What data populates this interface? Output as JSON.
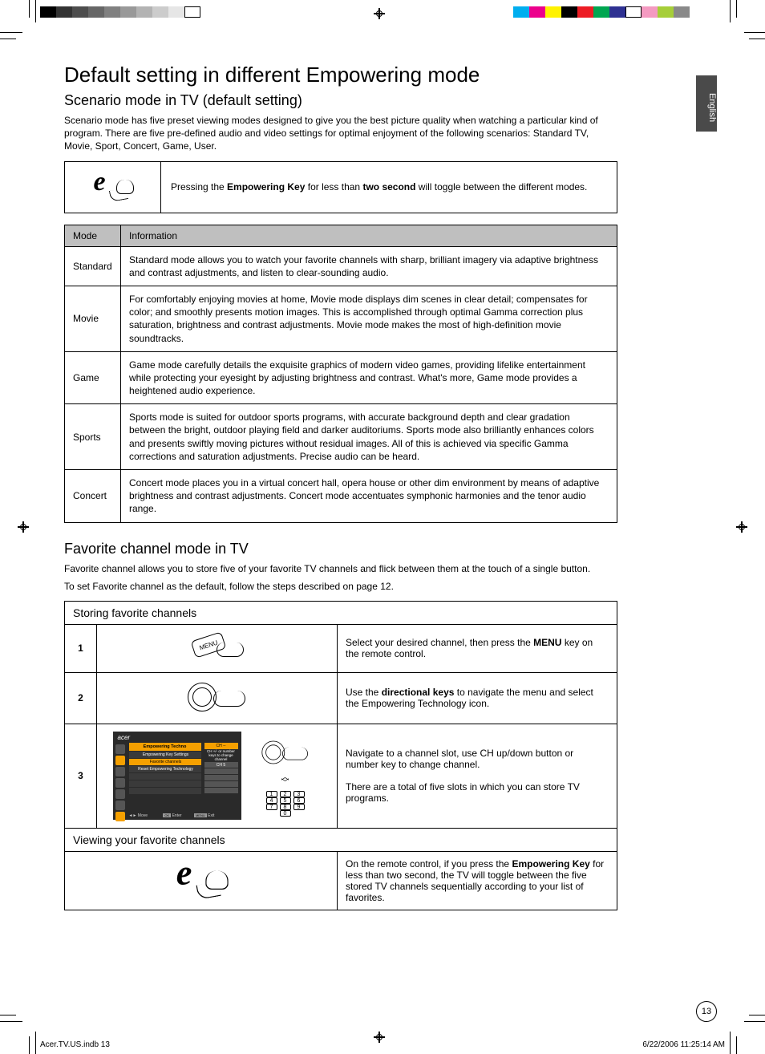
{
  "print_marks": {
    "left_swatches": [
      "#000000",
      "#333333",
      "#4d4d4d",
      "#666666",
      "#808080",
      "#999999",
      "#b3b3b3",
      "#cccccc",
      "#e6e6e6",
      "#ffffff"
    ],
    "right_swatches": [
      "#00aeef",
      "#ec008c",
      "#fff200",
      "#000000",
      "#ed1c24",
      "#00a651",
      "#2e3192",
      "#ffffff",
      "#f49ac1",
      "#a6ce39",
      "#898989"
    ]
  },
  "language_tab": "English",
  "title": "Default setting in different Empowering mode",
  "subtitle": "Scenario mode in TV  (default setting)",
  "intro": "Scenario mode has five preset viewing modes designed to give you the best picture quality when watching a particular kind of program. There are five pre-defined audio and video settings for optimal enjoyment of the following scenarios: Standard TV, Movie, Sport, Concert, Game, User.",
  "note": {
    "pre": "Pressing the ",
    "bold1": "Empowering Key",
    "mid": " for less than ",
    "bold2": "two second",
    "post": " will toggle between the different modes."
  },
  "mode_table": {
    "headers": [
      "Mode",
      "Information"
    ],
    "rows": [
      {
        "mode": "Standard",
        "info": "Standard mode allows you to watch your favorite channels with sharp, brilliant imagery via adaptive brightness and contrast adjustments, and listen to clear-sounding audio."
      },
      {
        "mode": "Movie",
        "info": "For comfortably enjoying movies at home, Movie mode displays dim scenes in clear detail; compensates for color; and smoothly presents motion images. This is accomplished through optimal Gamma correction plus saturation, brightness and contrast adjustments. Movie mode makes the most of high-definition movie soundtracks."
      },
      {
        "mode": "Game",
        "info": "Game mode carefully details the exquisite graphics of modern video games, providing lifelike entertainment while protecting your eyesight by adjusting brightness and contrast. What's more, Game mode provides a heightened audio experience."
      },
      {
        "mode": "Sports",
        "info": "Sports mode is suited for outdoor sports programs, with accurate background depth and clear gradation between the bright, outdoor playing field and darker auditoriums. Sports mode also brilliantly enhances colors and presents swiftly moving pictures without residual images. All of this is achieved via specific Gamma corrections and saturation adjustments. Precise audio can be heard."
      },
      {
        "mode": "Concert",
        "info": "Concert mode places you in a virtual concert hall, opera house or other dim environment by means of adaptive brightness and contrast adjustments. Concert mode accentuates symphonic harmonies and the tenor audio range."
      }
    ]
  },
  "fav": {
    "heading": "Favorite channel mode in TV",
    "p1": "Favorite channel allows you to store five of your favorite TV channels and flick between them at the touch of a single button.",
    "p2": "To set Favorite channel as the default, follow the steps described on page 12."
  },
  "store": {
    "section1": "Storing favorite channels",
    "step1": {
      "n": "1",
      "pre": "Select your desired channel, then press the ",
      "b": "MENU",
      "post": " key on the remote control."
    },
    "step2": {
      "n": "2",
      "pre": "Use the ",
      "b": "directional keys",
      "post": " to navigate the menu and select the Empowering Technology icon."
    },
    "step3": {
      "n": "3",
      "line1": "Navigate to a channel slot, use CH up/down button or number key to change channel.",
      "line2": "There are a total of five slots in which you can store TV programs."
    },
    "section2": "Viewing your favorite channels",
    "view": {
      "pre": "On the remote control, if you press the ",
      "b": "Empowering Key",
      "post": " for less than two second, the TV will toggle between the five stored TV channels sequentially according to your list of favorites."
    }
  },
  "osd": {
    "brand": "acer",
    "title": "Empowering Techno",
    "items": [
      "Empowering Key Settings",
      "Favorite channels",
      "Reset Empowering Technology"
    ],
    "right_hdr": "CH --",
    "right_sub1": "CH +/- or number",
    "right_sub2": "keys to change channel",
    "right_val": "CH 5",
    "foot_move": "Move",
    "foot_enter": "Enter",
    "foot_exit": "Exit"
  },
  "menu_btn_label": "MENU",
  "page_number": "13",
  "footer_left": "Acer.TV.US.indb   13",
  "footer_right": "6/22/2006   11:25:14 AM"
}
